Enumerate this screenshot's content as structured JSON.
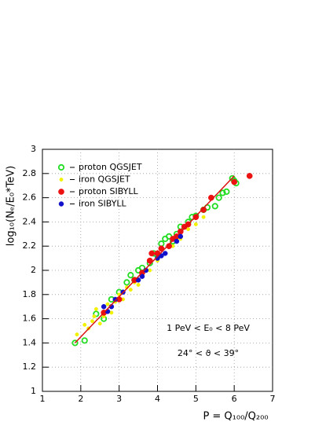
{
  "chart_data": {
    "type": "scatter",
    "xlabel": "P = Q₁₀₀/Q₂₀₀",
    "ylabel": "log₁₀(Nₑ/E₀*TeV)",
    "xlim": [
      1,
      7
    ],
    "ylim": [
      1,
      3
    ],
    "xticks": [
      1,
      2,
      3,
      4,
      5,
      6,
      7
    ],
    "yticks": [
      1,
      1.2,
      1.4,
      1.6,
      1.8,
      2,
      2.2,
      2.4,
      2.6,
      2.8,
      3
    ],
    "grid": true,
    "legend": "upper-left",
    "annotations": [
      "1 PeV < E₀ < 8 PeV",
      "24° < ϑ < 39°"
    ],
    "series": [
      {
        "name": "proton QGSJET",
        "color": "#22dd22",
        "marker": "open",
        "size": 3.2,
        "x": [
          1.85,
          2.1,
          2.4,
          2.6,
          2.8,
          3.0,
          3.2,
          3.3,
          3.4,
          3.5,
          3.6,
          3.8,
          3.9,
          4.0,
          4.1,
          4.2,
          4.3,
          4.4,
          4.5,
          4.6,
          4.8,
          4.9,
          5.0,
          5.2,
          5.3,
          5.5,
          5.6,
          5.7,
          5.8,
          5.95,
          6.0,
          6.05
        ],
        "values": [
          1.4,
          1.42,
          1.64,
          1.6,
          1.76,
          1.82,
          1.9,
          1.96,
          1.92,
          2.0,
          2.02,
          2.06,
          2.14,
          2.12,
          2.22,
          2.26,
          2.28,
          2.24,
          2.3,
          2.36,
          2.4,
          2.44,
          2.45,
          2.5,
          2.52,
          2.53,
          2.6,
          2.64,
          2.65,
          2.76,
          2.74,
          2.72
        ]
      },
      {
        "name": "iron QGSJET",
        "color": "#f2f200",
        "marker": "filled",
        "size": 2.2,
        "x": [
          1.9,
          2.1,
          2.2,
          2.3,
          2.35,
          2.4,
          2.5,
          2.6,
          2.7,
          2.8,
          2.9,
          3.0,
          3.1,
          3.2,
          3.3,
          3.4,
          3.5,
          3.6,
          3.8,
          4.0,
          4.2,
          4.4,
          4.6,
          4.8,
          5.0,
          5.2
        ],
        "values": [
          1.47,
          1.55,
          1.52,
          1.58,
          1.62,
          1.68,
          1.56,
          1.62,
          1.72,
          1.65,
          1.74,
          1.8,
          1.76,
          1.86,
          1.84,
          1.9,
          1.88,
          1.96,
          2.0,
          2.08,
          2.14,
          2.2,
          2.26,
          2.34,
          2.38,
          2.44
        ]
      },
      {
        "name": "proton SIBYLL",
        "color": "#ee1111",
        "marker": "filled",
        "size": 3.6,
        "x": [
          2.6,
          3.0,
          3.4,
          3.6,
          3.8,
          3.85,
          4.0,
          4.1,
          4.3,
          4.4,
          4.5,
          4.6,
          4.7,
          4.8,
          5.0,
          5.2,
          5.4,
          6.0,
          6.4
        ],
        "values": [
          1.65,
          1.76,
          1.92,
          1.98,
          2.08,
          2.14,
          2.14,
          2.18,
          2.2,
          2.26,
          2.28,
          2.32,
          2.36,
          2.38,
          2.44,
          2.5,
          2.6,
          2.73,
          2.78
        ]
      },
      {
        "name": "iron SIBYLL",
        "color": "#1111cc",
        "marker": "filled",
        "size": 3,
        "x": [
          2.6,
          2.7,
          2.8,
          2.9,
          3.1,
          3.5,
          3.6,
          3.7,
          4.0,
          4.1,
          4.2,
          4.5,
          4.6
        ],
        "values": [
          1.7,
          1.66,
          1.7,
          1.76,
          1.82,
          1.92,
          1.95,
          2.0,
          2.1,
          2.12,
          2.14,
          2.24,
          2.28
        ]
      }
    ],
    "fit": {
      "color": "#dd1111",
      "x": [
        1.85,
        6.0
      ],
      "y": [
        1.4,
        2.78
      ]
    }
  }
}
